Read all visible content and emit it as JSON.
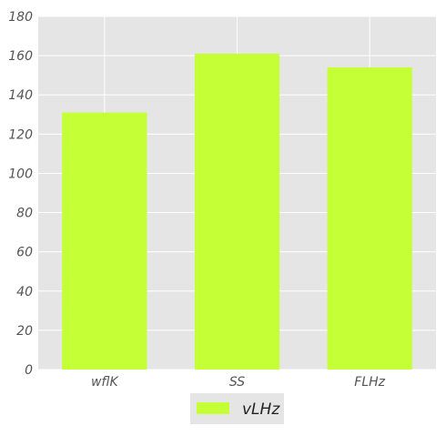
{
  "colors": {
    "plot_background": "#e5e5e5",
    "grid": "#ffffff",
    "bar": "#c5ff35",
    "legend_background": "#e5e5e5"
  },
  "chart_data": {
    "type": "bar",
    "categories": [
      "wflK",
      "SS",
      "FLHz"
    ],
    "series": [
      {
        "name": "vLHz",
        "values": [
          131,
          161,
          154
        ]
      }
    ],
    "title": "",
    "xlabel": "",
    "ylabel": "",
    "ylim": [
      0,
      180
    ],
    "yticks": [
      0,
      20,
      40,
      60,
      80,
      100,
      120,
      140,
      160,
      180
    ],
    "grid": true,
    "legend_position": "bottom-center"
  }
}
